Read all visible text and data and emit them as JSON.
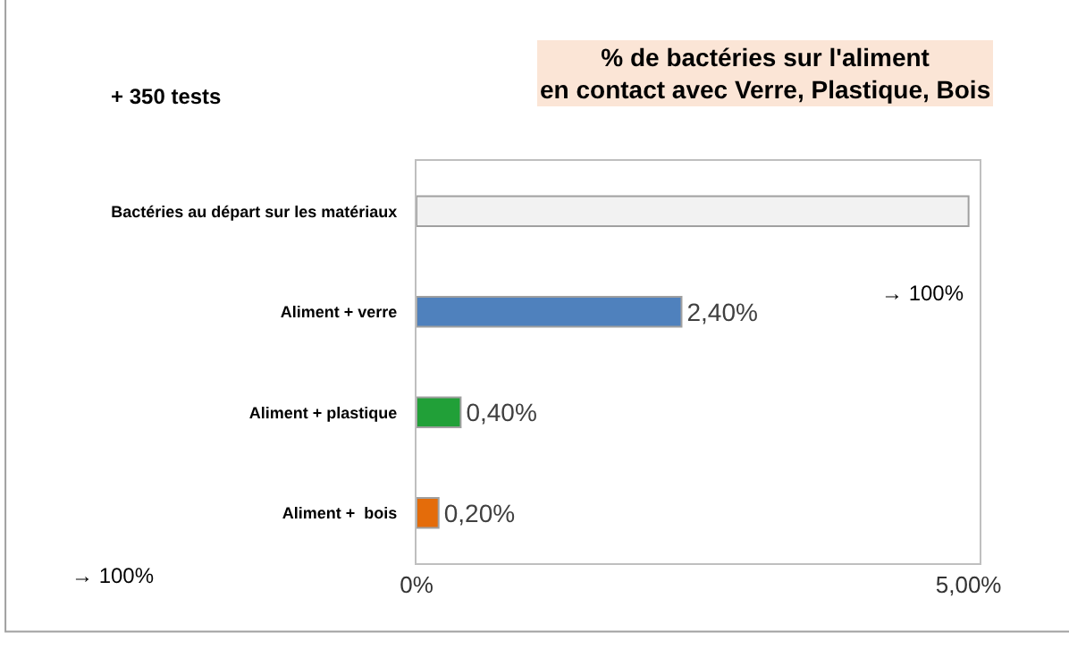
{
  "chart_data": {
    "type": "bar",
    "orientation": "horizontal",
    "title": "% de bactéries sur l'aliment en contact avec Verre, Plastique, Bois",
    "categories": [
      "Bactéries au départ sur les matériaux",
      "Aliment + verre",
      "Aliment + plastique",
      "Aliment +  bois"
    ],
    "values": [
      5.0,
      2.4,
      0.4,
      0.2
    ],
    "colors": [
      "#f2f2f2",
      "#4f81bd",
      "#21a038",
      "#e46c0a"
    ],
    "value_labels": [
      null,
      "2,40%",
      "0,40%",
      "0,20%"
    ],
    "xlim": [
      0,
      5.1
    ],
    "xticks": [
      {
        "value": 0,
        "label": "0%"
      },
      {
        "value": 5,
        "label": "5,00%"
      }
    ],
    "legend": false,
    "annotations": [
      "+ 350 tests",
      "→ 100%",
      "→ 100%"
    ]
  }
}
